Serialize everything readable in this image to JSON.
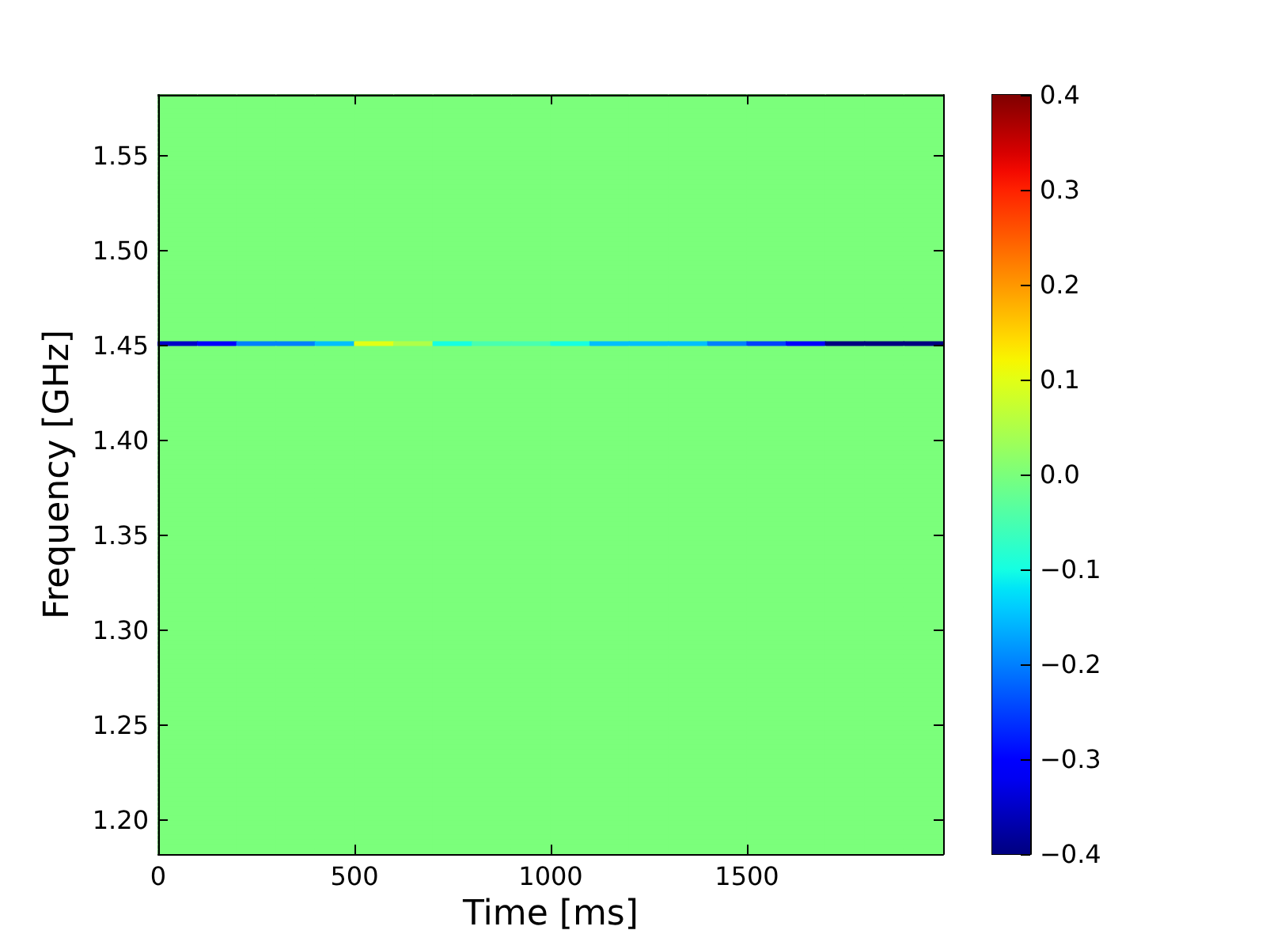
{
  "chart_data": {
    "type": "heatmap",
    "xlabel": "Time [ms]",
    "ylabel": "Frequency [GHz]",
    "xlim": [
      0,
      2000
    ],
    "xticks": [
      0,
      500,
      1000,
      1500
    ],
    "ylim": [
      1.182,
      1.582
    ],
    "yticks": [
      {
        "value": 1.2,
        "label": "1.20"
      },
      1.25,
      {
        "value": 1.3,
        "label": "1.30"
      },
      1.35,
      {
        "value": 1.4,
        "label": "1.40"
      },
      1.45,
      {
        "value": 1.5,
        "label": "1.50"
      },
      1.55
    ],
    "clim": [
      -0.4,
      0.4
    ],
    "cticks": [
      {
        "value": -0.4,
        "label": "−0.4"
      },
      {
        "value": -0.3,
        "label": "−0.3"
      },
      {
        "value": -0.2,
        "label": "−0.2"
      },
      {
        "value": -0.1,
        "label": "−0.1"
      },
      {
        "value": 0,
        "label": "0.0"
      },
      0.1,
      0.2,
      0.3,
      0.4
    ],
    "cells": [
      [
        0,
        0,
        0,
        0,
        0,
        0,
        0,
        0,
        0,
        0,
        0,
        0,
        0,
        0,
        0,
        0,
        0,
        0,
        0,
        0
      ],
      [
        0,
        0,
        0,
        0,
        0,
        0,
        0,
        0,
        0,
        0,
        0,
        0,
        0,
        0,
        0,
        0,
        0,
        0,
        0,
        0
      ],
      [
        0,
        0,
        0,
        0,
        0,
        0,
        0,
        0,
        0,
        0,
        0,
        0,
        0,
        0,
        0,
        0,
        0,
        0,
        0,
        0
      ],
      [
        0,
        0,
        0,
        0,
        0,
        0,
        0,
        0,
        0,
        0,
        0,
        0,
        0,
        0,
        0,
        0,
        0,
        0,
        0,
        0
      ],
      [
        0,
        0,
        0,
        0,
        0,
        0,
        0,
        0,
        0,
        0,
        0,
        0,
        0,
        0,
        0,
        0,
        0,
        0,
        0,
        0
      ],
      [
        0,
        0,
        0,
        0,
        0,
        0,
        0,
        0,
        0,
        0,
        0,
        0,
        0,
        0,
        0,
        0,
        0,
        0,
        0,
        0
      ],
      [
        0,
        0,
        0,
        0,
        0,
        0,
        0,
        0,
        0,
        0,
        0,
        0,
        0,
        0,
        0,
        0,
        0,
        0,
        0,
        0
      ],
      [
        0,
        0,
        0,
        0,
        0,
        0,
        0,
        0,
        0,
        0,
        0,
        0,
        0,
        0,
        0,
        0,
        0,
        0,
        0,
        0
      ],
      [
        0,
        0,
        0,
        0,
        0,
        0,
        0,
        0,
        0,
        0,
        0,
        0,
        0,
        0,
        0,
        0,
        0,
        0,
        0,
        0
      ],
      [
        0,
        0,
        0,
        0,
        0,
        0,
        0,
        0,
        0,
        0,
        0,
        0,
        0,
        0,
        0,
        0,
        0,
        0,
        0,
        0
      ],
      [
        0,
        0,
        0,
        0,
        0,
        0,
        0,
        0,
        0,
        0,
        0,
        0,
        0,
        0,
        0,
        0,
        0,
        0,
        0,
        0
      ],
      [
        0,
        0,
        0,
        0,
        0,
        0,
        0,
        0,
        0,
        0,
        0,
        0,
        0,
        0,
        0,
        0,
        0,
        0,
        0,
        0
      ],
      [
        0,
        0,
        0,
        0,
        0,
        0,
        0,
        0,
        0,
        0,
        0,
        0,
        0,
        0,
        0,
        0,
        0,
        0,
        0,
        0
      ],
      [
        0,
        0,
        0,
        0,
        0,
        0,
        0,
        0,
        0,
        0,
        0,
        0,
        0,
        0,
        0,
        0,
        0,
        0,
        0,
        0
      ],
      [
        0,
        0,
        0,
        0,
        0,
        0,
        0,
        0,
        0,
        0,
        0,
        0,
        0,
        0,
        0,
        0,
        0,
        0,
        0,
        0
      ],
      [
        0,
        0,
        0,
        0,
        0,
        0,
        0,
        0,
        0,
        0,
        0,
        0,
        0,
        0,
        0,
        0,
        0,
        0,
        0,
        0
      ],
      [
        0,
        0,
        0,
        0,
        0,
        0,
        0,
        0,
        0,
        0,
        0,
        0,
        0,
        0,
        0,
        0,
        0,
        0,
        0,
        0
      ],
      [
        0,
        0,
        0,
        0,
        0,
        0,
        0,
        0,
        0,
        0,
        0,
        0,
        0,
        0,
        0,
        0,
        0,
        0,
        0,
        0
      ],
      [
        0,
        0,
        0,
        0,
        0,
        0,
        0,
        0,
        0,
        0,
        0,
        0,
        0,
        0,
        0,
        0,
        0,
        0,
        0,
        0
      ],
      [
        0,
        0,
        0,
        0,
        0,
        0,
        0,
        0,
        0,
        0,
        0,
        0,
        0,
        0,
        0,
        0,
        0,
        0,
        0,
        0
      ],
      [
        0,
        0,
        0,
        0,
        0,
        0,
        0,
        0,
        0,
        0,
        0,
        0,
        0,
        0,
        0,
        0,
        0,
        0,
        0,
        0
      ],
      [
        0,
        0,
        0,
        0,
        0,
        0,
        0,
        0,
        0,
        0,
        0,
        0,
        0,
        0,
        0,
        0,
        0,
        0,
        0,
        0
      ],
      [
        0,
        0,
        0,
        0,
        0,
        0,
        0,
        0,
        0,
        0,
        0,
        0,
        0,
        0,
        0,
        0,
        0,
        0,
        0,
        0
      ],
      [
        0,
        0,
        0,
        0,
        0,
        0,
        0,
        0,
        0,
        0,
        0,
        0,
        0,
        0,
        0,
        0,
        0,
        0,
        0,
        0
      ],
      [
        0,
        0,
        0,
        0,
        0,
        0,
        0,
        0,
        0,
        0,
        0,
        0,
        0,
        0,
        0,
        0,
        0,
        0,
        0,
        0
      ],
      [
        0,
        0,
        0,
        0,
        0,
        0,
        0,
        0,
        0,
        0,
        0,
        0,
        0,
        0,
        0,
        0,
        0,
        0,
        0,
        0
      ],
      [
        0,
        0,
        0,
        0,
        0,
        0,
        0,
        0,
        0,
        0,
        0,
        0,
        0,
        0,
        0,
        0,
        0,
        0,
        0,
        0
      ],
      [
        0,
        0,
        0,
        0,
        0,
        0,
        0,
        0,
        0,
        0,
        0,
        0,
        0,
        0,
        0,
        0,
        0,
        0,
        0,
        0
      ],
      [
        0,
        0,
        0,
        0,
        0,
        0,
        0,
        0,
        0,
        0,
        0,
        0,
        0,
        0,
        0,
        0,
        0,
        0,
        0,
        0
      ],
      [
        0,
        0,
        0,
        0,
        0,
        0,
        0,
        0,
        0,
        0,
        0,
        0,
        0,
        0,
        0,
        0,
        0,
        0,
        0,
        0
      ],
      [
        0,
        0,
        0,
        0,
        0,
        0,
        0,
        0,
        0,
        0,
        0,
        0,
        0,
        0,
        0,
        0,
        0,
        0,
        0,
        0
      ],
      [
        0,
        0,
        0,
        0,
        0,
        0,
        0,
        0,
        0,
        0,
        0,
        0,
        0,
        0,
        0,
        0,
        0,
        0,
        0,
        0
      ],
      [
        0,
        0,
        0,
        0,
        0,
        0,
        0,
        0,
        0,
        0,
        0,
        0,
        0,
        0,
        0,
        0,
        0,
        0,
        0,
        0
      ],
      [
        0,
        0,
        0,
        0,
        0,
        0,
        0,
        0,
        0,
        0,
        0,
        0,
        0,
        0,
        0,
        0,
        0,
        0,
        0,
        0
      ],
      [
        0,
        0,
        0,
        0,
        0,
        0,
        0,
        0,
        0,
        0,
        0,
        0,
        0,
        0,
        0,
        0,
        0,
        0,
        0,
        0
      ],
      [
        0,
        0,
        0,
        0,
        0,
        0,
        0,
        0,
        0,
        0,
        0,
        0,
        0,
        0,
        0,
        0,
        0,
        0,
        0,
        0
      ],
      [
        0,
        0,
        0,
        0,
        0,
        0,
        0,
        0,
        0,
        0,
        0,
        0,
        0,
        0,
        0,
        0,
        0,
        0,
        0,
        0
      ],
      [
        0,
        0,
        0,
        0,
        0,
        0,
        0,
        0,
        0,
        0,
        0,
        0,
        0,
        0,
        0,
        0,
        0,
        0,
        0,
        0
      ],
      [
        0,
        0,
        0,
        0,
        0,
        0,
        0,
        0,
        0,
        0,
        0,
        0,
        0,
        0,
        0,
        0,
        0,
        0,
        0,
        0
      ],
      [
        0,
        0,
        0,
        0,
        0,
        0,
        0,
        0,
        0,
        0,
        0,
        0,
        0,
        0,
        0,
        0,
        0,
        0,
        0,
        0
      ],
      [
        0,
        0,
        0,
        0,
        0,
        0,
        0,
        0,
        0,
        0,
        0,
        0,
        0,
        0,
        0,
        0,
        0,
        0,
        0,
        0
      ],
      [
        0,
        0,
        0,
        0,
        0,
        0,
        0,
        0,
        0,
        0,
        0,
        0,
        0,
        0,
        0,
        0,
        0,
        0,
        0,
        0
      ],
      [
        0,
        0,
        0,
        0,
        0,
        0,
        0,
        0,
        0,
        0,
        0,
        0,
        0,
        0,
        0,
        0,
        0,
        0,
        0,
        0
      ],
      [
        0,
        0,
        0,
        0,
        0,
        0,
        0,
        0,
        0,
        0,
        0,
        0,
        0,
        0,
        0,
        0,
        0,
        0,
        0,
        0
      ],
      [
        0,
        0,
        0,
        0,
        0,
        0,
        0,
        0,
        0,
        0,
        0,
        0,
        0,
        0,
        0,
        0,
        0,
        0,
        0,
        0
      ],
      [
        0,
        0,
        0,
        0,
        0,
        0,
        0,
        0,
        0,
        0,
        0,
        0,
        0,
        0,
        0,
        0,
        0,
        0,
        0,
        0
      ],
      [
        0,
        0,
        0,
        0,
        0,
        0,
        0,
        0,
        0,
        0,
        0,
        0,
        0,
        0,
        0,
        0,
        0,
        0,
        0,
        0
      ],
      [
        0,
        0,
        0,
        0,
        0,
        0,
        0,
        0,
        0,
        0,
        0,
        0,
        0,
        0,
        0,
        0,
        0,
        0,
        0,
        0
      ],
      [
        0,
        0,
        0,
        0,
        0,
        0,
        0,
        0,
        0,
        0,
        0,
        0,
        0,
        0,
        0,
        0,
        0,
        0,
        0,
        0
      ],
      [
        0,
        0,
        0,
        0,
        0,
        0,
        0,
        0,
        0,
        0,
        0,
        0,
        0,
        0,
        0,
        0,
        0,
        0,
        0,
        0
      ],
      [
        0,
        0,
        0,
        0,
        0,
        0,
        0,
        0,
        0,
        0,
        0,
        0,
        0,
        0,
        0,
        0,
        0,
        0,
        0,
        0
      ],
      [
        0,
        0,
        0,
        0,
        0,
        0,
        0,
        0,
        0,
        0,
        0,
        0,
        0,
        0,
        0,
        0,
        0,
        0,
        0,
        0
      ],
      [
        -0.35,
        -0.3,
        -0.2,
        -0.2,
        -0.15,
        0.1,
        0.05,
        -0.1,
        -0.05,
        -0.05,
        -0.1,
        -0.15,
        -0.15,
        -0.15,
        -0.2,
        -0.25,
        -0.3,
        -0.4,
        -0.4,
        -0.4
      ],
      [
        0,
        0,
        0,
        0,
        0,
        0,
        0,
        0,
        0,
        0,
        0,
        0,
        0,
        0,
        0,
        0,
        0,
        0,
        0,
        0
      ],
      [
        0,
        0,
        0,
        0,
        0,
        0,
        0,
        0,
        0,
        0,
        0,
        0,
        0,
        0,
        0,
        0,
        0,
        0,
        0,
        0
      ],
      [
        0,
        0,
        0,
        0,
        0,
        0,
        0,
        0,
        0,
        0,
        0,
        0,
        0,
        0,
        0,
        0,
        0,
        0,
        0,
        0
      ],
      [
        0,
        0,
        0,
        0,
        0,
        0,
        0,
        0,
        0,
        0,
        0,
        0,
        0,
        0,
        0,
        0,
        0,
        0,
        0,
        0
      ],
      [
        0,
        0,
        0,
        0,
        0,
        0,
        0,
        0,
        0,
        0,
        0,
        0,
        0,
        0,
        0,
        0,
        0,
        0,
        0,
        0
      ],
      [
        0,
        0,
        0,
        0,
        0,
        0,
        0,
        0,
        0,
        0,
        0,
        0,
        0,
        0,
        0,
        0,
        0,
        0,
        0,
        0
      ],
      [
        0,
        0,
        0,
        0,
        0,
        0,
        0,
        0,
        0,
        0,
        0,
        0,
        0,
        0,
        0,
        0,
        0,
        0,
        0,
        0
      ],
      [
        0,
        0,
        0,
        0,
        0,
        0,
        0,
        0,
        0,
        0,
        0,
        0,
        0,
        0,
        0,
        0,
        0,
        0,
        0,
        0
      ],
      [
        0,
        0,
        0,
        0,
        0,
        0,
        0,
        0,
        0,
        0,
        0,
        0,
        0,
        0,
        0,
        0,
        0,
        0,
        0,
        0
      ],
      [
        0,
        0,
        0,
        0,
        0,
        0,
        0,
        0,
        0,
        0,
        0,
        0,
        0,
        0,
        0,
        0,
        0,
        0,
        0,
        0
      ],
      [
        0,
        0,
        0,
        0,
        0,
        0,
        0,
        0,
        0,
        0,
        0,
        0,
        0,
        0,
        0,
        0,
        0,
        0,
        0,
        0
      ],
      [
        0,
        0,
        0,
        0,
        0,
        0,
        0,
        0,
        0,
        0,
        0,
        0,
        0,
        0,
        0,
        0,
        0,
        0,
        0,
        0
      ],
      [
        0,
        0,
        0,
        0,
        0,
        0,
        0,
        0,
        0,
        0,
        0,
        0,
        0,
        0,
        0,
        0,
        0,
        0,
        0,
        0
      ],
      [
        0,
        0,
        0,
        0,
        0,
        0,
        0,
        0,
        0,
        0,
        0,
        0,
        0,
        0,
        0,
        0,
        0,
        0,
        0,
        0
      ],
      [
        0,
        0,
        0,
        0,
        0,
        0,
        0,
        0,
        0,
        0,
        0,
        0,
        0,
        0,
        0,
        0,
        0,
        0,
        0,
        0
      ],
      [
        0,
        0,
        0,
        0,
        0,
        0,
        0,
        0,
        0,
        0,
        0,
        0,
        0,
        0,
        0,
        0,
        0,
        0,
        0,
        0
      ],
      [
        0,
        0,
        0,
        0,
        0,
        0,
        0,
        0,
        0,
        0,
        0,
        0,
        0,
        0,
        0,
        0,
        0,
        0,
        0,
        0
      ],
      [
        0,
        0,
        0,
        0,
        0,
        0,
        0,
        0,
        0,
        0,
        0,
        0,
        0,
        0,
        0,
        0,
        0,
        0,
        0,
        0
      ],
      [
        0,
        0,
        0,
        0,
        0,
        0,
        0,
        0,
        0,
        0,
        0,
        0,
        0,
        0,
        0,
        0,
        0,
        0,
        0,
        0
      ],
      [
        0,
        0,
        0,
        0,
        0,
        0,
        0,
        0,
        0,
        0,
        0,
        0,
        0,
        0,
        0,
        0,
        0,
        0,
        0,
        0
      ],
      [
        0,
        0,
        0,
        0,
        0,
        0,
        0,
        0,
        0,
        0,
        0,
        0,
        0,
        0,
        0,
        0,
        0,
        0,
        0,
        0
      ],
      [
        0,
        0,
        0,
        0,
        0,
        0,
        0,
        0,
        0,
        0,
        0,
        0,
        0,
        0,
        0,
        0,
        0,
        0,
        0,
        0
      ],
      [
        0,
        0,
        0,
        0,
        0,
        0,
        0,
        0,
        0,
        0,
        0,
        0,
        0,
        0,
        0,
        0,
        0,
        0,
        0,
        0
      ],
      [
        0,
        0,
        0,
        0,
        0,
        0,
        0,
        0,
        0,
        0,
        0,
        0,
        0,
        0,
        0,
        0,
        0,
        0,
        0,
        0
      ],
      [
        0,
        0,
        0,
        0,
        0,
        0,
        0,
        0,
        0,
        0,
        0,
        0,
        0,
        0,
        0,
        0,
        0,
        0,
        0,
        0
      ],
      [
        0,
        0,
        0,
        0,
        0,
        0,
        0,
        0,
        0,
        0,
        0,
        0,
        0,
        0,
        0,
        0,
        0,
        0,
        0,
        0
      ],
      [
        0,
        0,
        0,
        0,
        0,
        0,
        0,
        0,
        0,
        0,
        0,
        0,
        0,
        0,
        0,
        0,
        0,
        0,
        0,
        0
      ],
      [
        0,
        0,
        0,
        0,
        0,
        0,
        0,
        0,
        0,
        0,
        0,
        0,
        0,
        0,
        0,
        0,
        0,
        0,
        0,
        0
      ],
      [
        0,
        0,
        0,
        0,
        0,
        0,
        0,
        0,
        0,
        0,
        0,
        0,
        0,
        0,
        0,
        0,
        0,
        0,
        0,
        0
      ],
      [
        0,
        0,
        0,
        0,
        0,
        0,
        0,
        0,
        0,
        0,
        0,
        0,
        0,
        0,
        0,
        0,
        0,
        0,
        0,
        0
      ],
      [
        0,
        0,
        0,
        0,
        0,
        0,
        0,
        0,
        0,
        0,
        0,
        0,
        0,
        0,
        0,
        0,
        0,
        0,
        0,
        0
      ],
      [
        0,
        0,
        0,
        0,
        0,
        0,
        0,
        0,
        0,
        0,
        0,
        0,
        0,
        0,
        0,
        0,
        0,
        0,
        0,
        0
      ],
      [
        0,
        0,
        0,
        0,
        0,
        0,
        0,
        0,
        0,
        0,
        0,
        0,
        0,
        0,
        0,
        0,
        0,
        0,
        0,
        0
      ],
      [
        0,
        0,
        0,
        0,
        0,
        0,
        0,
        0,
        0,
        0,
        0,
        0,
        0,
        0,
        0,
        0,
        0,
        0,
        0,
        0
      ],
      [
        0,
        0,
        0,
        0,
        0,
        0,
        0,
        0,
        0,
        0,
        0,
        0,
        0,
        0,
        0,
        0,
        0,
        0,
        0,
        0
      ],
      [
        0,
        0,
        0,
        0,
        0,
        0,
        0,
        0,
        0,
        0,
        0,
        0,
        0,
        0,
        0,
        0,
        0,
        0,
        0,
        0
      ],
      [
        0,
        0,
        0,
        0,
        0,
        0,
        0,
        0,
        0,
        0,
        0,
        0,
        0,
        0,
        0,
        0,
        0,
        0,
        0,
        0
      ],
      [
        0,
        0,
        0,
        0,
        0,
        0,
        0,
        0,
        0,
        0,
        0,
        0,
        0,
        0,
        0,
        0,
        0,
        0,
        0,
        0
      ],
      [
        0,
        0,
        0,
        0,
        0,
        0,
        0,
        0,
        0,
        0,
        0,
        0,
        0,
        0,
        0,
        0,
        0,
        0,
        0,
        0
      ],
      [
        0,
        0,
        0,
        0,
        0,
        0,
        0,
        0,
        0,
        0,
        0,
        0,
        0,
        0,
        0,
        0,
        0,
        0,
        0,
        0
      ],
      [
        0,
        0,
        0,
        0,
        0,
        0,
        0,
        0,
        0,
        0,
        0,
        0,
        0,
        0,
        0,
        0,
        0,
        0,
        0,
        0
      ],
      [
        0,
        0,
        0,
        0,
        0,
        0,
        0,
        0,
        0,
        0,
        0,
        0,
        0,
        0,
        0,
        0,
        0,
        0,
        0,
        0
      ],
      [
        0,
        0,
        0,
        0,
        0,
        0,
        0,
        0,
        0,
        0,
        0,
        0,
        0,
        0,
        0,
        0,
        0,
        0,
        0,
        0
      ],
      [
        0,
        0,
        0,
        0,
        0,
        0,
        0,
        0,
        0,
        0,
        0,
        0,
        0,
        0,
        0,
        0,
        0,
        0,
        0,
        0
      ],
      [
        0,
        0,
        0,
        0,
        0,
        0,
        0,
        0,
        0,
        0,
        0,
        0,
        0,
        0,
        0,
        0,
        0,
        0,
        0,
        0
      ],
      [
        0,
        0,
        0,
        0,
        0,
        0,
        0,
        0,
        0,
        0,
        0,
        0,
        0,
        0,
        0,
        0,
        0,
        0,
        0,
        0
      ],
      [
        0,
        0,
        0,
        0,
        0,
        0,
        0,
        0,
        0,
        0,
        0,
        0,
        0,
        0,
        0,
        0,
        0,
        0,
        0,
        0
      ],
      [
        0,
        0,
        0,
        0,
        0,
        0,
        0,
        0,
        0,
        0,
        0,
        0,
        0,
        0,
        0,
        0,
        0,
        0,
        0,
        0
      ],
      [
        0,
        0,
        0,
        0,
        0,
        0,
        0,
        0,
        0,
        0,
        0,
        0,
        0,
        0,
        0,
        0,
        0,
        0,
        0,
        0
      ],
      [
        0,
        0,
        0,
        0,
        0,
        0,
        0,
        0,
        0,
        0,
        0,
        0,
        0,
        0,
        0,
        0,
        0,
        0,
        0,
        0
      ],
      [
        0,
        0,
        0,
        0,
        0,
        0,
        0,
        0,
        0,
        0,
        0,
        0,
        0,
        0,
        0,
        0,
        0,
        0,
        0,
        0
      ],
      [
        0,
        0,
        0,
        0,
        0,
        0,
        0,
        0,
        0,
        0,
        0,
        0,
        0,
        0,
        0,
        0,
        0,
        0,
        0,
        0
      ],
      [
        0,
        0,
        0,
        0,
        0,
        0,
        0,
        0,
        0,
        0,
        0,
        0,
        0,
        0,
        0,
        0,
        0,
        0,
        0,
        0
      ],
      [
        0,
        0,
        0,
        0,
        0,
        0,
        0,
        0,
        0,
        0,
        0,
        0,
        0,
        0,
        0,
        0,
        0,
        0,
        0,
        0
      ],
      [
        0,
        0,
        0,
        0,
        0,
        0,
        0,
        0,
        0,
        0,
        0,
        0,
        0,
        0,
        0,
        0,
        0,
        0,
        0,
        0
      ],
      [
        0,
        0,
        0,
        0,
        0,
        0,
        0,
        0,
        0,
        0,
        0,
        0,
        0,
        0,
        0,
        0,
        0,
        0,
        0,
        0
      ],
      [
        0,
        0,
        0,
        0,
        0,
        0,
        0,
        0,
        0,
        0,
        0,
        0,
        0,
        0,
        0,
        0,
        0,
        0,
        0,
        0
      ],
      [
        0,
        0,
        0,
        0,
        0,
        0,
        0,
        0,
        0,
        0,
        0,
        0,
        0,
        0,
        0,
        0,
        0,
        0,
        0,
        0
      ],
      [
        0,
        0,
        0,
        0,
        0,
        0,
        0,
        0,
        0,
        0,
        0,
        0,
        0,
        0,
        0,
        0,
        0,
        0,
        0,
        0
      ],
      [
        0,
        0,
        0,
        0,
        0,
        0,
        0,
        0,
        0,
        0,
        0,
        0,
        0,
        0,
        0,
        0,
        0,
        0,
        0,
        0
      ],
      [
        0,
        0,
        0,
        0,
        0,
        0,
        0,
        0,
        0,
        0,
        0,
        0,
        0,
        0,
        0,
        0,
        0,
        0,
        0,
        0
      ],
      [
        0,
        0,
        0,
        0,
        0,
        0,
        0,
        0,
        0,
        0,
        0,
        0,
        0,
        0,
        0,
        0,
        0,
        0,
        0,
        0
      ],
      [
        0,
        0,
        0,
        0,
        0,
        0,
        0,
        0,
        0,
        0,
        0,
        0,
        0,
        0,
        0,
        0,
        0,
        0,
        0,
        0
      ],
      [
        0,
        0,
        0,
        0,
        0,
        0,
        0,
        0,
        0,
        0,
        0,
        0,
        0,
        0,
        0,
        0,
        0,
        0,
        0,
        0
      ],
      [
        0,
        0,
        0,
        0,
        0,
        0,
        0,
        0,
        0,
        0,
        0,
        0,
        0,
        0,
        0,
        0,
        0,
        0,
        0,
        0
      ],
      [
        0,
        0,
        0,
        0,
        0,
        0,
        0,
        0,
        0,
        0,
        0,
        0,
        0,
        0,
        0,
        0,
        0,
        0,
        0,
        0
      ],
      [
        0,
        0,
        0,
        0,
        0,
        0,
        0,
        0,
        0,
        0,
        0,
        0,
        0,
        0,
        0,
        0,
        0,
        0,
        0,
        0
      ],
      [
        0,
        0,
        0,
        0,
        0,
        0,
        0,
        0,
        0,
        0,
        0,
        0,
        0,
        0,
        0,
        0,
        0,
        0,
        0,
        0
      ],
      [
        0,
        0,
        0,
        0,
        0,
        0,
        0,
        0,
        0,
        0,
        0,
        0,
        0,
        0,
        0,
        0,
        0,
        0,
        0,
        0
      ],
      [
        0,
        0,
        0,
        0,
        0,
        0,
        0,
        0,
        0,
        0,
        0,
        0,
        0,
        0,
        0,
        0,
        0,
        0,
        0,
        0
      ],
      [
        0,
        0,
        0,
        0,
        0,
        0,
        0,
        0,
        0,
        0,
        0,
        0,
        0,
        0,
        0,
        0,
        0,
        0,
        0,
        0
      ],
      [
        0,
        0,
        0,
        0,
        0,
        0,
        0,
        0,
        0,
        0,
        0,
        0,
        0,
        0,
        0,
        0,
        0,
        0,
        0,
        0
      ],
      [
        0,
        0,
        0,
        0,
        0,
        0,
        0,
        0,
        0,
        0,
        0,
        0,
        0,
        0,
        0,
        0,
        0,
        0,
        0,
        0
      ],
      [
        0,
        0,
        0,
        0,
        0,
        0,
        0,
        0,
        0,
        0,
        0,
        0,
        0,
        0,
        0,
        0,
        0,
        0,
        0,
        0
      ],
      [
        0,
        0,
        0,
        0,
        0,
        0,
        0,
        0,
        0,
        0,
        0,
        0,
        0,
        0,
        0,
        0,
        0,
        0,
        0,
        0
      ],
      [
        0,
        0,
        0,
        0,
        0,
        0,
        0,
        0,
        0,
        0,
        0,
        0,
        0,
        0,
        0,
        0,
        0,
        0,
        0,
        0
      ],
      [
        0,
        0,
        0,
        0,
        0,
        0,
        0,
        0,
        0,
        0,
        0,
        0,
        0,
        0,
        0,
        0,
        0,
        0,
        0,
        0
      ],
      [
        0,
        0,
        0,
        0,
        0,
        0,
        0,
        0,
        0,
        0,
        0,
        0,
        0,
        0,
        0,
        0,
        0,
        0,
        0,
        0
      ],
      [
        0,
        0,
        0,
        0,
        0,
        0,
        0,
        0,
        0,
        0,
        0,
        0,
        0,
        0,
        0,
        0,
        0,
        0,
        0,
        0
      ],
      [
        0,
        0,
        0,
        0,
        0,
        0,
        0,
        0,
        0,
        0,
        0,
        0,
        0,
        0,
        0,
        0,
        0,
        0,
        0,
        0
      ],
      [
        0,
        0,
        0,
        0,
        0,
        0,
        0,
        0,
        0,
        0,
        0,
        0,
        0,
        0,
        0,
        0,
        0,
        0,
        0,
        0
      ],
      [
        0,
        0,
        0,
        0,
        0,
        0,
        0,
        0,
        0,
        0,
        0,
        0,
        0,
        0,
        0,
        0,
        0,
        0,
        0,
        0
      ],
      [
        0,
        0,
        0,
        0,
        0,
        0,
        0,
        0,
        0,
        0,
        0,
        0,
        0,
        0,
        0,
        0,
        0,
        0,
        0,
        0
      ],
      [
        0,
        0,
        0,
        0,
        0,
        0,
        0,
        0,
        0,
        0,
        0,
        0,
        0,
        0,
        0,
        0,
        0,
        0,
        0,
        0
      ],
      [
        0,
        0,
        0,
        0,
        0,
        0,
        0,
        0,
        0,
        0,
        0,
        0,
        0,
        0,
        0,
        0,
        0,
        0,
        0,
        0
      ],
      [
        0,
        0,
        0,
        0,
        0,
        0,
        0,
        0,
        0,
        0,
        0,
        0,
        0,
        0,
        0,
        0,
        0,
        0,
        0,
        0
      ],
      [
        0,
        0,
        0,
        0,
        0,
        0,
        0,
        0,
        0,
        0,
        0,
        0,
        0,
        0,
        0,
        0,
        0,
        0,
        0,
        0
      ],
      [
        0,
        0,
        0,
        0,
        0,
        0,
        0,
        0,
        0,
        0,
        0,
        0,
        0,
        0,
        0,
        0,
        0,
        0,
        0,
        0
      ],
      [
        0,
        0,
        0,
        0,
        0,
        0,
        0,
        0,
        0,
        0,
        0,
        0,
        0,
        0,
        0,
        0,
        0,
        0,
        0,
        0
      ],
      [
        0,
        0,
        0,
        0,
        0,
        0,
        0,
        0,
        0,
        0,
        0,
        0,
        0,
        0,
        0,
        0,
        0,
        0,
        0,
        0
      ],
      [
        0,
        0,
        0,
        0,
        0,
        0,
        0,
        0,
        0,
        0,
        0,
        0,
        0,
        0,
        0,
        0,
        0,
        0,
        0,
        0
      ],
      [
        0,
        0,
        0,
        0,
        0,
        0,
        0,
        0,
        0,
        0,
        0,
        0,
        0,
        0,
        0,
        0,
        0,
        0,
        0,
        0
      ],
      [
        0,
        0,
        0,
        0,
        0,
        0,
        0,
        0,
        0,
        0,
        0,
        0,
        0,
        0,
        0,
        0,
        0,
        0,
        0,
        0
      ],
      [
        0,
        0,
        0,
        0,
        0,
        0,
        0,
        0,
        0,
        0,
        0,
        0,
        0,
        0,
        0,
        0,
        0,
        0,
        0,
        0
      ],
      [
        0,
        0,
        0,
        0,
        0,
        0,
        0,
        0,
        0,
        0,
        0,
        0,
        0,
        0,
        0,
        0,
        0,
        0,
        0,
        0
      ],
      [
        0,
        0,
        0,
        0,
        0,
        0,
        0,
        0,
        0,
        0,
        0,
        0,
        0,
        0,
        0,
        0,
        0,
        0,
        0,
        0
      ],
      [
        0,
        0,
        0,
        0,
        0,
        0,
        0,
        0,
        0,
        0,
        0,
        0,
        0,
        0,
        0,
        0,
        0,
        0,
        0,
        0
      ],
      [
        0,
        0,
        0,
        0,
        0,
        0,
        0,
        0,
        0,
        0,
        0,
        0,
        0,
        0,
        0,
        0,
        0,
        0,
        0,
        0
      ],
      [
        0,
        0,
        0,
        0,
        0,
        0,
        0,
        0,
        0,
        0,
        0,
        0,
        0,
        0,
        0,
        0,
        0,
        0,
        0,
        0
      ],
      [
        0,
        0,
        0,
        0,
        0,
        0,
        0,
        0,
        0,
        0,
        0,
        0,
        0,
        0,
        0,
        0,
        0,
        0,
        0,
        0
      ],
      [
        0,
        0,
        0,
        0,
        0,
        0,
        0,
        0,
        0,
        0,
        0,
        0,
        0,
        0,
        0,
        0,
        0,
        0,
        0,
        0
      ],
      [
        0,
        0,
        0,
        0,
        0,
        0,
        0,
        0,
        0,
        0,
        0,
        0,
        0,
        0,
        0,
        0,
        0,
        0,
        0,
        0
      ],
      [
        0,
        0,
        0,
        0,
        0,
        0,
        0,
        0,
        0,
        0,
        0,
        0,
        0,
        0,
        0,
        0,
        0,
        0,
        0,
        0
      ],
      [
        0,
        0,
        0,
        0,
        0,
        0,
        0,
        0,
        0,
        0,
        0,
        0,
        0,
        0,
        0,
        0,
        0,
        0,
        0,
        0
      ],
      [
        0,
        0,
        0,
        0,
        0,
        0,
        0,
        0,
        0,
        0,
        0,
        0,
        0,
        0,
        0,
        0,
        0,
        0,
        0,
        0
      ],
      [
        0,
        0,
        0,
        0,
        0,
        0,
        0,
        0,
        0,
        0,
        0,
        0,
        0,
        0,
        0,
        0,
        0,
        0,
        0,
        0
      ],
      [
        0,
        0,
        0,
        0,
        0,
        0,
        0,
        0,
        0,
        0,
        0,
        0,
        0,
        0,
        0,
        0,
        0,
        0,
        0,
        0
      ]
    ]
  }
}
